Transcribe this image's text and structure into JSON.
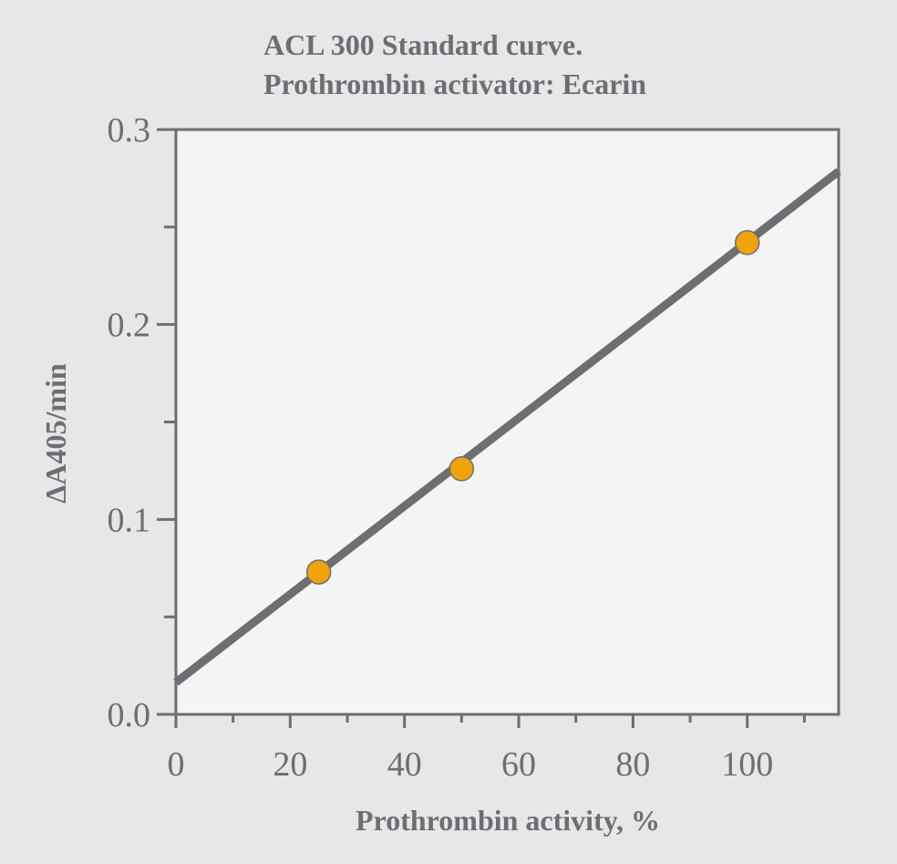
{
  "chart_data": {
    "type": "scatter",
    "title_lines": [
      "ACL 300 Standard curve.",
      "Prothrombin activator: Ecarin"
    ],
    "xlabel": "Prothrombin activity, %",
    "ylabel": "ΔA405/min",
    "xlim": [
      0,
      116
    ],
    "ylim": [
      0,
      0.3
    ],
    "x_ticks": [
      0,
      20,
      40,
      60,
      80,
      100
    ],
    "x_tick_labels": [
      "0",
      "20",
      "40",
      "60",
      "80",
      "100"
    ],
    "x_minor_ticks": [
      10,
      30,
      50,
      70,
      90,
      110
    ],
    "y_ticks": [
      0,
      0.1,
      0.2,
      0.3
    ],
    "y_tick_labels": [
      "0.0",
      "0.1",
      "0.2",
      "0.3"
    ],
    "y_minor_ticks": [
      0.05,
      0.15,
      0.25
    ],
    "grid": false,
    "points": [
      {
        "x": 25,
        "y": 0.073
      },
      {
        "x": 50,
        "y": 0.126
      },
      {
        "x": 100,
        "y": 0.242
      }
    ],
    "fit_line": {
      "intercept": 0.0164,
      "slope": 0.00226
    },
    "colors": {
      "background": "#e6e7e9",
      "plot_background": "#f3f4f4",
      "axis": "#6d6e71",
      "line": "#6d6e71",
      "marker": "#f0a30a"
    }
  }
}
